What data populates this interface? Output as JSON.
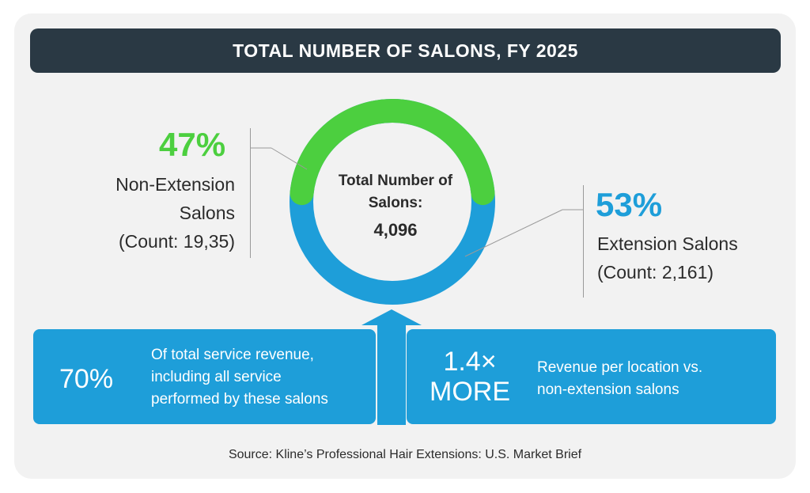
{
  "chart_data": {
    "type": "pie",
    "title": "TOTAL NUMBER OF SALONS, FY 2025",
    "center_label": "Total Number of Salons:",
    "center_value": "4,096",
    "slices": [
      {
        "percent_label": "47%",
        "value": 47,
        "label": "Non-Extension Salons",
        "count_label": "(Count: 19,35)",
        "color": "#4ccf3f"
      },
      {
        "percent_label": "53%",
        "value": 53,
        "label": "Extension Salons",
        "count_label": "(Count: 2,161)",
        "color": "#1e9ed9"
      }
    ]
  },
  "stats": {
    "left": {
      "big": "70%",
      "desc": [
        "Of total service revenue,",
        "including all service",
        "performed by these salons"
      ]
    },
    "right": {
      "big": [
        "1.4×",
        "MORE"
      ],
      "desc": [
        "Revenue per location vs.",
        "non-extension salons"
      ]
    }
  },
  "source": "Source: Kline’s Professional Hair Extensions: U.S. Market Brief",
  "colors": {
    "green": "#4ccf3f",
    "blue": "#1e9ed9",
    "dark": "#2a3944"
  }
}
